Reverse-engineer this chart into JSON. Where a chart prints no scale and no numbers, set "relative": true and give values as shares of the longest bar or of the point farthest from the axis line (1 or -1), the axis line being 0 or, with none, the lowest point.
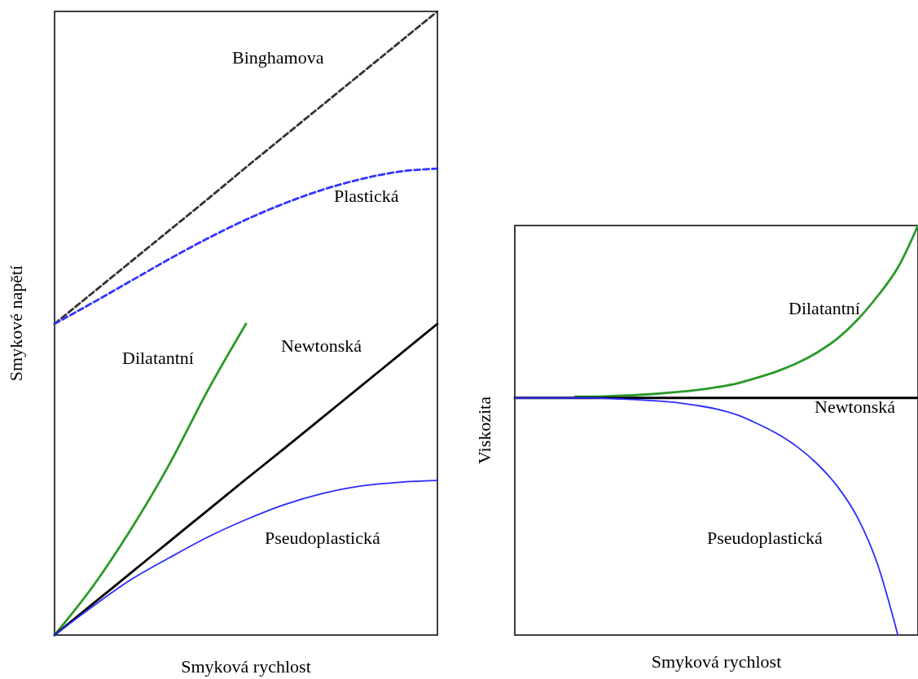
{
  "chart_data": [
    {
      "type": "line",
      "relative": true,
      "tick_labels": false,
      "xlabel": "Smyková rychlost",
      "ylabel": "Smykové napětí",
      "categories": [
        null,
        null,
        null,
        null,
        null,
        null,
        null,
        null,
        null,
        null,
        null
      ],
      "series": [
        {
          "name": "Binghamova",
          "color": "#333333",
          "line_style": "dashed",
          "values": [
            0.499,
            0.549,
            0.599,
            0.649,
            0.699,
            0.75,
            0.8,
            0.85,
            0.9,
            0.95,
            1.0
          ]
        },
        {
          "name": "Plastická",
          "color": "#3333ff",
          "line_style": "dashed",
          "values": [
            0.499,
            0.533,
            0.568,
            0.603,
            0.636,
            0.666,
            0.692,
            0.714,
            0.731,
            0.743,
            0.748
          ]
        },
        {
          "name": "Dilatantní",
          "color": "#2a9a2a",
          "values": [
            0,
            0.078,
            0.17,
            0.274,
            0.392,
            0.499,
            null,
            null,
            null,
            null,
            null
          ]
        },
        {
          "name": "Newtonská",
          "color": "#000000",
          "values": [
            0,
            0.05,
            0.1,
            0.15,
            0.2,
            0.25,
            0.299,
            0.349,
            0.399,
            0.449,
            0.499
          ]
        },
        {
          "name": "Pseudoplastická",
          "color": "#2b2bff",
          "values": [
            0,
            0.046,
            0.089,
            0.124,
            0.157,
            0.185,
            0.209,
            0.227,
            0.239,
            0.245,
            0.248
          ]
        }
      ]
    },
    {
      "type": "line",
      "relative": true,
      "tick_labels": false,
      "xlabel": "Smyková rychlost",
      "ylabel": "Viskozita",
      "categories": [
        null,
        null,
        null,
        null,
        null,
        null,
        null,
        null,
        null,
        null,
        null,
        null,
        null,
        null,
        null,
        null,
        null,
        null,
        null,
        null,
        null
      ],
      "series": [
        {
          "name": "Dilatantní",
          "color": "#2a9a2a",
          "values": [
            null,
            null,
            null,
            0.582,
            0.582,
            0.584,
            0.586,
            0.589,
            0.593,
            0.598,
            0.605,
            0.614,
            0.628,
            0.644,
            0.664,
            0.69,
            0.724,
            0.77,
            0.828,
            0.897,
            1.0
          ]
        },
        {
          "name": "Newtonská",
          "color": "#000000",
          "values": [
            0.579,
            0.579,
            0.579,
            0.579,
            0.579,
            0.579,
            0.579,
            0.579,
            0.579,
            0.579,
            0.579,
            0.579,
            0.579,
            0.579,
            0.579,
            0.579,
            0.579,
            0.579,
            0.579,
            0.579,
            0.579
          ]
        },
        {
          "name": "Pseudoplastická",
          "color": "#2b2bff",
          "values": [
            0.579,
            0.579,
            0.579,
            0.579,
            0.579,
            0.577,
            0.575,
            0.572,
            0.568,
            0.561,
            0.552,
            0.538,
            0.517,
            0.492,
            0.46,
            0.418,
            0.363,
            0.287,
            0.172,
            0,
            null
          ]
        }
      ]
    }
  ]
}
